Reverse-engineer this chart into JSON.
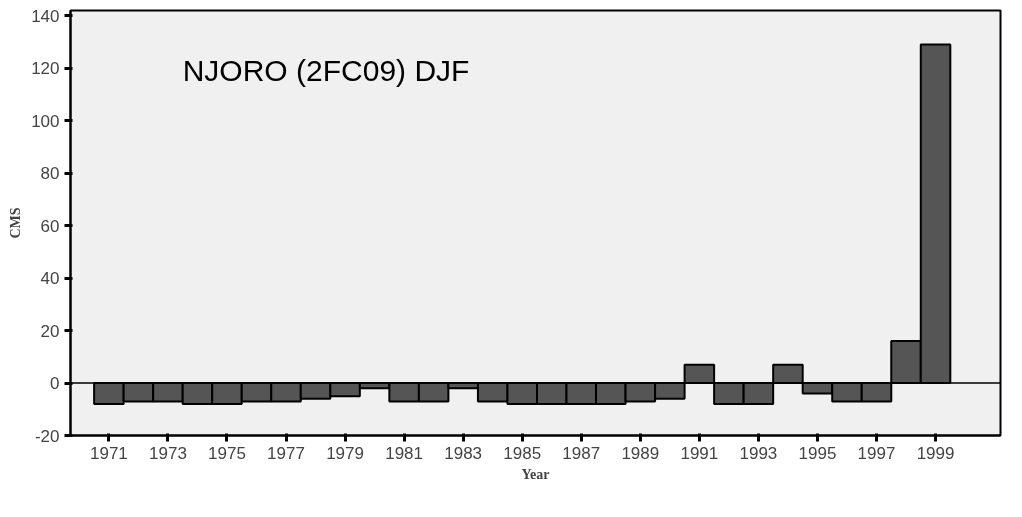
{
  "chart_data": {
    "type": "bar",
    "title": "NJORO (2FC09) DJF",
    "xlabel": "Year",
    "ylabel": "CMS",
    "x": [
      1971,
      1972,
      1973,
      1974,
      1975,
      1976,
      1977,
      1978,
      1979,
      1980,
      1981,
      1982,
      1983,
      1984,
      1985,
      1986,
      1987,
      1988,
      1989,
      1990,
      1991,
      1992,
      1993,
      1994,
      1995,
      1996,
      1997,
      1998,
      1999
    ],
    "values": [
      -8,
      -7,
      -7,
      -8,
      -8,
      -7,
      -7,
      -6,
      -5,
      -2,
      -7,
      -7,
      -2,
      -7,
      -8,
      -8,
      -8,
      -8,
      -7,
      -6,
      7,
      -8,
      -8,
      7,
      -4,
      -7,
      -7,
      16,
      129
    ],
    "color": "#555555",
    "xlim": [
      1969.7,
      2001.2
    ],
    "ylim": [
      -20,
      142
    ],
    "xticks": [
      1971,
      1973,
      1975,
      1977,
      1979,
      1981,
      1983,
      1985,
      1987,
      1989,
      1991,
      1993,
      1995,
      1997,
      1999
    ],
    "yticks": [
      -20,
      0,
      20,
      40,
      60,
      80,
      100,
      120,
      140
    ],
    "ref_lines": [
      {
        "axis": "y",
        "value": 0,
        "color": "#000000"
      }
    ],
    "grid": false
  }
}
